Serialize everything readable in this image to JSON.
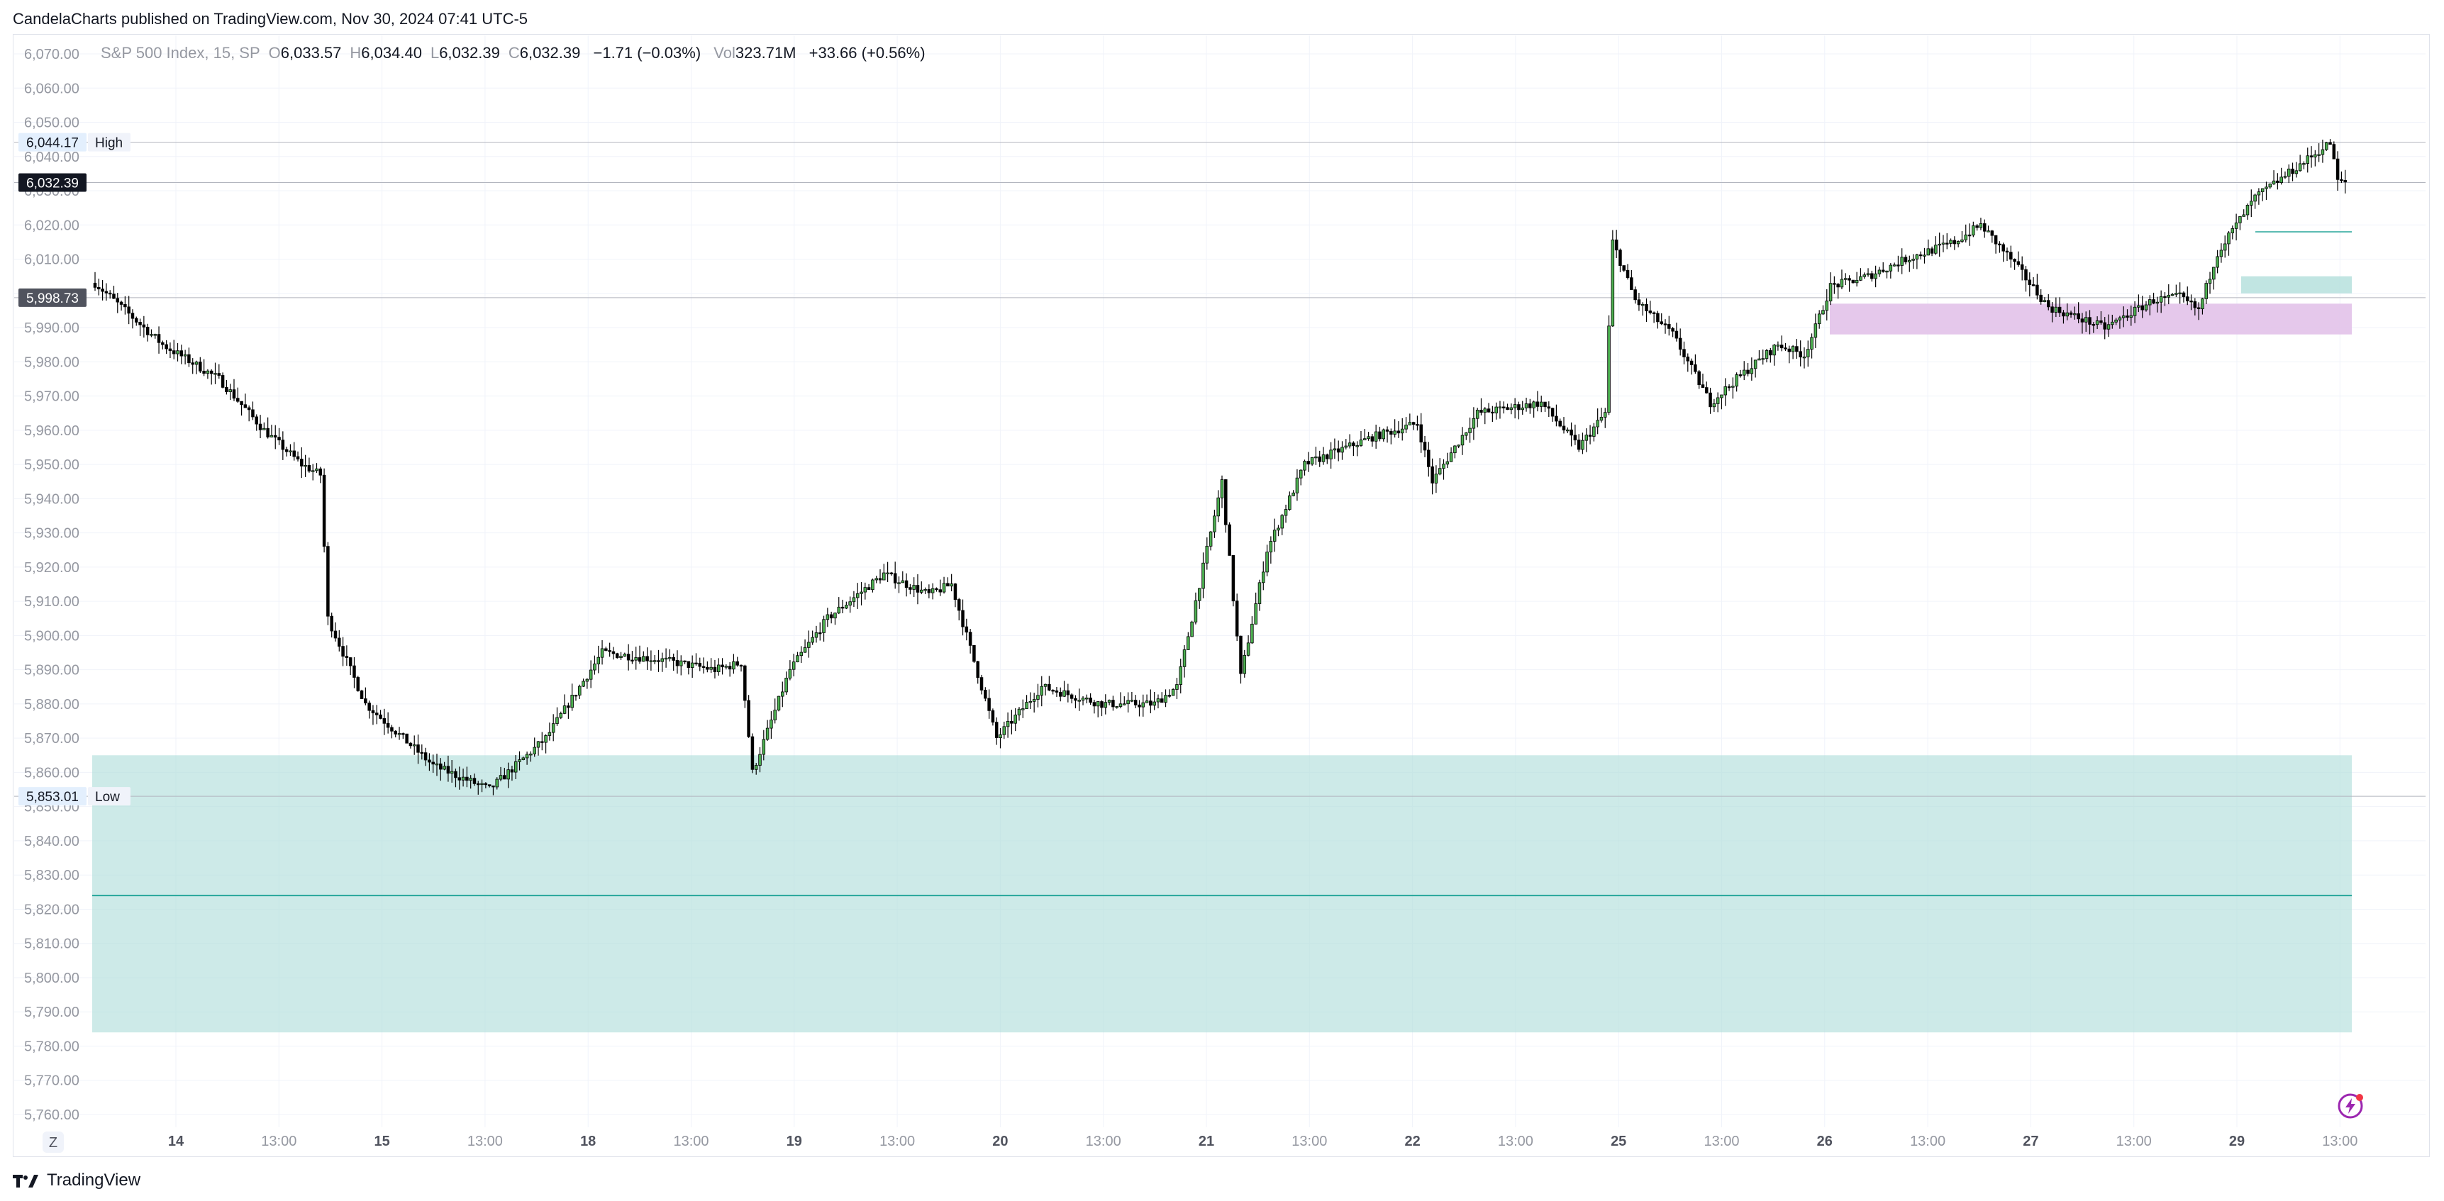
{
  "publisher_line": "CandelaCharts published on TradingView.com, Nov 30, 2024 07:41 UTC-5",
  "footer": {
    "brand": "TradingView"
  },
  "legend": {
    "symbol": "S&P 500 Index, 15, SP",
    "open_label": "O",
    "open": "6,033.57",
    "high_label": "H",
    "high": "6,034.40",
    "low_label": "L",
    "low": "6,032.39",
    "close_label": "C",
    "close": "6,032.39",
    "change": "−1.71 (−0.03%)",
    "vol_label": "Vol",
    "vol": "323.71M",
    "extra_change": "+33.66 (+0.56%)"
  },
  "colors": {
    "up": "#4caf50",
    "down": "#000000",
    "zone_teal": "#b2dfdb",
    "zone_pink": "#e1bee7",
    "grid": "#f0f3fa",
    "axis_text": "#9598a1",
    "teal_line": "#26a69a"
  },
  "chart_data": {
    "type": "candlestick",
    "symbol": "S&P 500 Index",
    "interval": "15",
    "ylim": [
      5755,
      6075
    ],
    "y_ticks": [
      6070,
      6060,
      6050,
      6040,
      6030,
      6020,
      6010,
      6000,
      5990,
      5980,
      5970,
      5960,
      5950,
      5940,
      5930,
      5920,
      5910,
      5900,
      5890,
      5880,
      5870,
      5860,
      5850,
      5840,
      5830,
      5820,
      5810,
      5800,
      5790,
      5780,
      5770,
      5760
    ],
    "x_ticks": [
      "14",
      "13:00",
      "15",
      "13:00",
      "18",
      "13:00",
      "19",
      "13:00",
      "20",
      "13:00",
      "21",
      "13:00",
      "22",
      "13:00",
      "25",
      "13:00",
      "26",
      "13:00",
      "27",
      "13:00",
      "29",
      "13:00"
    ],
    "timezone_button": "Z",
    "price_labels": [
      {
        "price": 6044.17,
        "text": "6,044.17",
        "tag": "High"
      },
      {
        "price": 6032.39,
        "text": "6,032.39",
        "tag": ""
      },
      {
        "price": 5998.73,
        "text": "5,998.73",
        "tag": ""
      },
      {
        "price": 5853.01,
        "text": "5,853.01",
        "tag": "Low"
      }
    ],
    "zones": [
      {
        "name": "demand-zone",
        "from": 5784,
        "to": 5865,
        "mid": 5824,
        "color": "#b2dfdb"
      },
      {
        "name": "pink-zone",
        "from": 5988,
        "to": 5997,
        "color": "#e1bee7"
      },
      {
        "name": "small-teal-zone",
        "from": 6000,
        "to": 6005,
        "color": "#b2dfdb"
      }
    ],
    "keypoints": [
      [
        0,
        6003
      ],
      [
        18,
        5985
      ],
      [
        33,
        5975
      ],
      [
        45,
        5960
      ],
      [
        55,
        5950
      ],
      [
        60,
        5947
      ],
      [
        62,
        5905
      ],
      [
        72,
        5880
      ],
      [
        90,
        5862
      ],
      [
        105,
        5855
      ],
      [
        120,
        5870
      ],
      [
        135,
        5895
      ],
      [
        150,
        5893
      ],
      [
        165,
        5890
      ],
      [
        172,
        5892
      ],
      [
        175,
        5860
      ],
      [
        185,
        5890
      ],
      [
        195,
        5905
      ],
      [
        210,
        5918
      ],
      [
        222,
        5912
      ],
      [
        228,
        5915
      ],
      [
        232,
        5900
      ],
      [
        240,
        5870
      ],
      [
        252,
        5885
      ],
      [
        268,
        5880
      ],
      [
        282,
        5880
      ],
      [
        288,
        5885
      ],
      [
        295,
        5920
      ],
      [
        300,
        5945
      ],
      [
        305,
        5888
      ],
      [
        312,
        5925
      ],
      [
        322,
        5950
      ],
      [
        340,
        5958
      ],
      [
        352,
        5962
      ],
      [
        356,
        5945
      ],
      [
        368,
        5965
      ],
      [
        385,
        5968
      ],
      [
        395,
        5955
      ],
      [
        402,
        5965
      ],
      [
        404,
        6015
      ],
      [
        410,
        5998
      ],
      [
        420,
        5988
      ],
      [
        430,
        5968
      ],
      [
        437,
        5975
      ],
      [
        448,
        5985
      ],
      [
        455,
        5982
      ],
      [
        458,
        5990
      ],
      [
        462,
        6002
      ],
      [
        472,
        6005
      ],
      [
        482,
        6010
      ],
      [
        495,
        6015
      ],
      [
        502,
        6020
      ],
      [
        510,
        6010
      ],
      [
        520,
        5996
      ],
      [
        535,
        5990
      ],
      [
        548,
        5998
      ],
      [
        555,
        5999
      ],
      [
        560,
        5995
      ],
      [
        565,
        6012
      ],
      [
        575,
        6028
      ],
      [
        590,
        6040
      ],
      [
        595,
        6044
      ],
      [
        597,
        6033
      ],
      [
        598,
        6032.39
      ]
    ],
    "last": {
      "open": 6033.57,
      "high": 6034.4,
      "low": 6032.39,
      "close": 6032.39,
      "change": -1.71,
      "change_pct": -0.03
    }
  }
}
